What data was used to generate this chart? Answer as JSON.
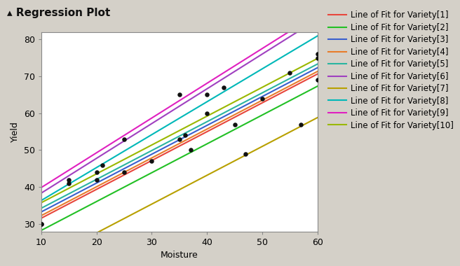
{
  "title": "Regression Plot",
  "xlabel": "Moisture",
  "ylabel": "Yield",
  "xlim": [
    10,
    60
  ],
  "ylim": [
    28,
    82
  ],
  "xticks": [
    10,
    20,
    30,
    40,
    50,
    60
  ],
  "yticks": [
    30,
    40,
    50,
    60,
    70,
    80
  ],
  "background_color": "#d4d0c8",
  "plot_bg": "#ffffff",
  "varieties": [
    {
      "name": "Variety[1]",
      "color": "#e8463c",
      "intercept": 23.8,
      "slope": 0.78
    },
    {
      "name": "Variety[2]",
      "color": "#22c025",
      "intercept": 20.5,
      "slope": 0.78
    },
    {
      "name": "Variety[3]",
      "color": "#3a5fcd",
      "intercept": 25.5,
      "slope": 0.78
    },
    {
      "name": "Variety[4]",
      "color": "#e87c2a",
      "intercept": 24.5,
      "slope": 0.78
    },
    {
      "name": "Variety[5]",
      "color": "#2ab5a0",
      "intercept": 26.5,
      "slope": 0.78
    },
    {
      "name": "Variety[6]",
      "color": "#a040c0",
      "intercept": 29.0,
      "slope": 0.94
    },
    {
      "name": "Variety[7]",
      "color": "#b8a000",
      "intercept": 12.0,
      "slope": 0.78
    },
    {
      "name": "Variety[8]",
      "color": "#00b8b8",
      "intercept": 27.5,
      "slope": 0.89
    },
    {
      "name": "Variety[9]",
      "color": "#e020c0",
      "intercept": 30.5,
      "slope": 0.94
    },
    {
      "name": "Variety[10]",
      "color": "#9ab800",
      "intercept": 28.0,
      "slope": 0.78
    }
  ],
  "scatter_x": [
    10,
    10,
    15,
    15,
    20,
    20,
    21,
    25,
    25,
    30,
    35,
    35,
    36,
    37,
    40,
    40,
    43,
    45,
    47,
    50,
    55,
    57,
    60,
    60,
    60
  ],
  "scatter_y": [
    30,
    30,
    41,
    42,
    42,
    44,
    46,
    44,
    53,
    47,
    53,
    65,
    54,
    50,
    60,
    65,
    67,
    57,
    49,
    64,
    71,
    57,
    75,
    76,
    69
  ],
  "scatter_color": "#111111",
  "scatter_size": 22,
  "title_fontsize": 11,
  "axis_fontsize": 9,
  "tick_fontsize": 9,
  "legend_fontsize": 8.5,
  "line_width": 1.5
}
